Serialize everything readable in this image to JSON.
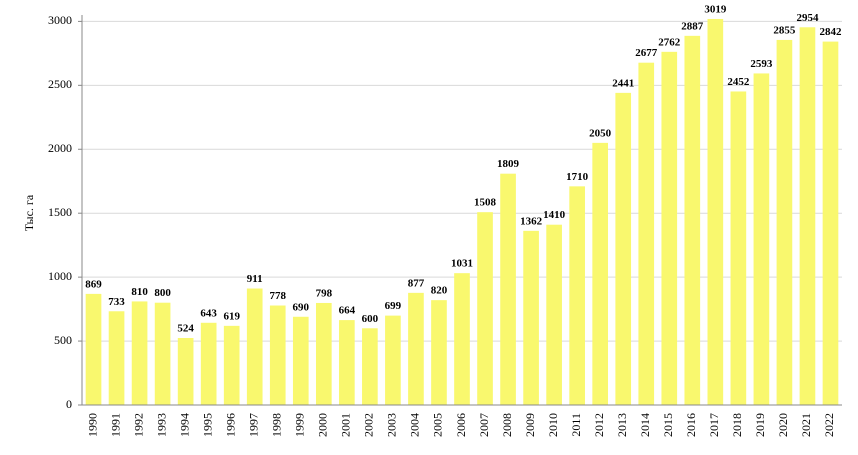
{
  "chart_data": {
    "type": "bar",
    "y_label": "Тыс. га",
    "categories": [
      "1990",
      "1991",
      "1992",
      "1993",
      "1994",
      "1995",
      "1996",
      "1997",
      "1998",
      "1999",
      "2000",
      "2001",
      "2002",
      "2003",
      "2004",
      "2005",
      "2006",
      "2007",
      "2008",
      "2009",
      "2010",
      "2011",
      "2012",
      "2013",
      "2014",
      "2015",
      "2016",
      "2017",
      "2018",
      "2019",
      "2020",
      "2021",
      "2022"
    ],
    "values": [
      869,
      733,
      810,
      800,
      524,
      643,
      619,
      911,
      778,
      690,
      798,
      664,
      600,
      699,
      877,
      820,
      1031,
      1508,
      1809,
      1362,
      1410,
      1710,
      2050,
      2441,
      2677,
      2762,
      2887,
      3019,
      2452,
      2593,
      2855,
      2954,
      2842
    ],
    "color": "#f9f86e",
    "ylim": [
      0,
      3050
    ],
    "yticks": [
      0,
      500,
      1000,
      1500,
      2000,
      2500,
      3000
    ],
    "grid": true
  }
}
